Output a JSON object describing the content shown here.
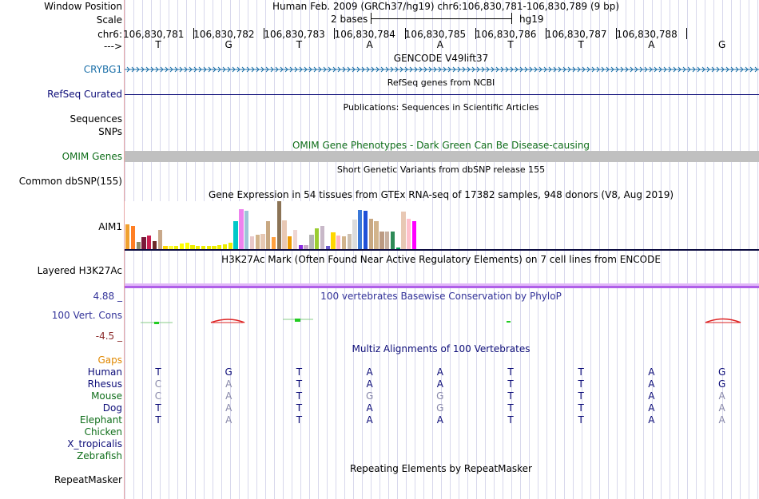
{
  "header": {
    "window_position_label": "Window Position",
    "window_position": "Human Feb. 2009 (GRCh37/hg19)   chr6:106,830,781-106,830,789 (9 bp)",
    "scale_label": "Scale",
    "scale_text": "2 bases",
    "assembly": "hg19",
    "chr_label": "chr6:",
    "strand_label": "--->",
    "positions": [
      "106,830,781",
      "106,830,782",
      "106,830,783",
      "106,830,784",
      "106,830,785",
      "106,830,786",
      "106,830,787",
      "106,830,788"
    ],
    "sequence": [
      "T",
      "G",
      "T",
      "A",
      "A",
      "T",
      "T",
      "A",
      "G"
    ]
  },
  "tracks": {
    "gencode": {
      "title": "GENCODE V49lift37",
      "label": "CRYBG1",
      "color": "#1a6fa8"
    },
    "refseq": {
      "title": "RefSeq genes from NCBI",
      "label": "RefSeq Curated",
      "color": "#0c0c78"
    },
    "publications": {
      "title": "Publications: Sequences in Scientific Articles",
      "label1": "Sequences",
      "label2": "SNPs"
    },
    "omim": {
      "title": "OMIM Gene Phenotypes - Dark Green Can Be Disease-causing",
      "label": "OMIM Genes",
      "color": "#0f6e1a"
    },
    "dbsnp": {
      "title": "Short Genetic Variants from dbSNP release 155",
      "label": "Common dbSNP(155)"
    },
    "gtex": {
      "title": "Gene Expression in 54 tissues from GTEx RNA-seq of 17382 samples, 948 donors (V8, Aug 2019)",
      "label": "AIM1"
    },
    "h3k27ac": {
      "title": "H3K27Ac Mark (Often Found Near Active Regulatory Elements) on 7 cell lines from ENCODE",
      "label": "Layered H3K27Ac"
    },
    "phylop": {
      "title": "100 vertebrates Basewise Conservation by PhyloP",
      "label": "100 Vert. Cons",
      "max": "4.88 _",
      "min": "-4.5 _",
      "color": "#333399"
    },
    "multiz": {
      "title": "Multiz Alignments of 100 Vertebrates",
      "gaps_label": "Gaps",
      "color": "#0c0c78"
    },
    "repeatmasker": {
      "title": "Repeating Elements by RepeatMasker",
      "label": "RepeatMasker"
    }
  },
  "gtex_values": [
    {
      "color": "#f0a030",
      "v": 0.52
    },
    {
      "color": "#ff7f24",
      "v": 0.48
    },
    {
      "color": "#8b8b6b",
      "v": 0.15
    },
    {
      "color": "#7a1a3a",
      "v": 0.25
    },
    {
      "color": "#c81e50",
      "v": 0.28
    },
    {
      "color": "#6e2a2a",
      "v": 0.17
    },
    {
      "color": "#c8a88a",
      "v": 0.4
    },
    {
      "color": "#ffd700",
      "v": 0.06
    },
    {
      "color": "#ffff33",
      "v": 0.06
    },
    {
      "color": "#eeee00",
      "v": 0.06
    },
    {
      "color": "#ffff00",
      "v": 0.12
    },
    {
      "color": "#ffff00",
      "v": 0.14
    },
    {
      "color": "#eeee00",
      "v": 0.08
    },
    {
      "color": "#eeee00",
      "v": 0.06
    },
    {
      "color": "#eeee00",
      "v": 0.07
    },
    {
      "color": "#eeee00",
      "v": 0.06
    },
    {
      "color": "#eeee00",
      "v": 0.07
    },
    {
      "color": "#eeee00",
      "v": 0.09
    },
    {
      "color": "#eeee00",
      "v": 0.1
    },
    {
      "color": "#eeee00",
      "v": 0.13
    },
    {
      "color": "#00c8c8",
      "v": 0.58
    },
    {
      "color": "#ee82ee",
      "v": 0.84
    },
    {
      "color": "#9ec4d8",
      "v": 0.8
    },
    {
      "color": "#e8c8c8",
      "v": 0.27
    },
    {
      "color": "#d2b48c",
      "v": 0.3
    },
    {
      "color": "#e6c8b4",
      "v": 0.31
    },
    {
      "color": "#c8a882",
      "v": 0.58
    },
    {
      "color": "#ffa040",
      "v": 0.25
    },
    {
      "color": "#8b7355",
      "v": 1.0
    },
    {
      "color": "#e8c8b4",
      "v": 0.6
    },
    {
      "color": "#ee9a00",
      "v": 0.26
    },
    {
      "color": "#eed5d2",
      "v": 0.4
    },
    {
      "color": "#8a2be2",
      "v": 0.08
    },
    {
      "color": "#c8a8c8",
      "v": 0.08
    },
    {
      "color": "#b4b4b4",
      "v": 0.3
    },
    {
      "color": "#9acd32",
      "v": 0.44
    },
    {
      "color": "#c8b8c8",
      "v": 0.49
    },
    {
      "color": "#6a5acd",
      "v": 0.07
    },
    {
      "color": "#ffd700",
      "v": 0.35
    },
    {
      "color": "#ffb6c1",
      "v": 0.28
    },
    {
      "color": "#d2b48c",
      "v": 0.26
    },
    {
      "color": "#cdc0b0",
      "v": 0.31
    },
    {
      "color": "#dcdcdc",
      "v": 0.62
    },
    {
      "color": "#3a78d8",
      "v": 0.82
    },
    {
      "color": "#2050d8",
      "v": 0.8
    },
    {
      "color": "#c8a882",
      "v": 0.63
    },
    {
      "color": "#d2b48c",
      "v": 0.58
    },
    {
      "color": "#bc9a82",
      "v": 0.37
    },
    {
      "color": "#c8b0a0",
      "v": 0.36
    },
    {
      "color": "#2e8b57",
      "v": 0.36
    },
    {
      "color": "#00a050",
      "v": 0.02
    },
    {
      "color": "#e8c8b4",
      "v": 0.78
    },
    {
      "color": "#ffc0cb",
      "v": 0.64
    },
    {
      "color": "#ff00ff",
      "v": 0.58
    }
  ],
  "alignments": [
    {
      "species": "Human",
      "bases": [
        "T",
        "G",
        "T",
        "A",
        "A",
        "T",
        "T",
        "A",
        "G"
      ],
      "color": "#0c0c78",
      "dim": []
    },
    {
      "species": "Rhesus",
      "bases": [
        "C",
        "A",
        "T",
        "A",
        "A",
        "T",
        "T",
        "A",
        "G"
      ],
      "color": "#0c0c78",
      "dim": [
        0,
        1
      ]
    },
    {
      "species": "Mouse",
      "bases": [
        "C",
        "A",
        "T",
        "G",
        "G",
        "T",
        "T",
        "A",
        "A"
      ],
      "color": "#0f6e1a",
      "dim": [
        0,
        1,
        3,
        4,
        8
      ]
    },
    {
      "species": "Dog",
      "bases": [
        "T",
        "A",
        "T",
        "A",
        "G",
        "T",
        "T",
        "A",
        "A"
      ],
      "color": "#0c0c78",
      "dim": [
        1,
        4,
        8
      ]
    },
    {
      "species": "Elephant",
      "bases": [
        "T",
        "A",
        "T",
        "A",
        "A",
        "T",
        "T",
        "A",
        "A"
      ],
      "color": "#0f6e1a",
      "dim": [
        1,
        8
      ]
    },
    {
      "species": "Chicken",
      "bases": [],
      "color": "#0f6e1a",
      "dim": []
    },
    {
      "species": "X_tropicalis",
      "bases": [],
      "color": "#0c0c78",
      "dim": []
    },
    {
      "species": "Zebrafish",
      "bases": [],
      "color": "#0f6e1a",
      "dim": []
    }
  ],
  "colors": {
    "grid": "#d8d8ec",
    "omim_bar": "#c0c0c0",
    "h3k27ac": "#c070f0",
    "gap": "#e08800",
    "phylo_min": "#8b2a2a",
    "dim_base": "#8888aa"
  }
}
